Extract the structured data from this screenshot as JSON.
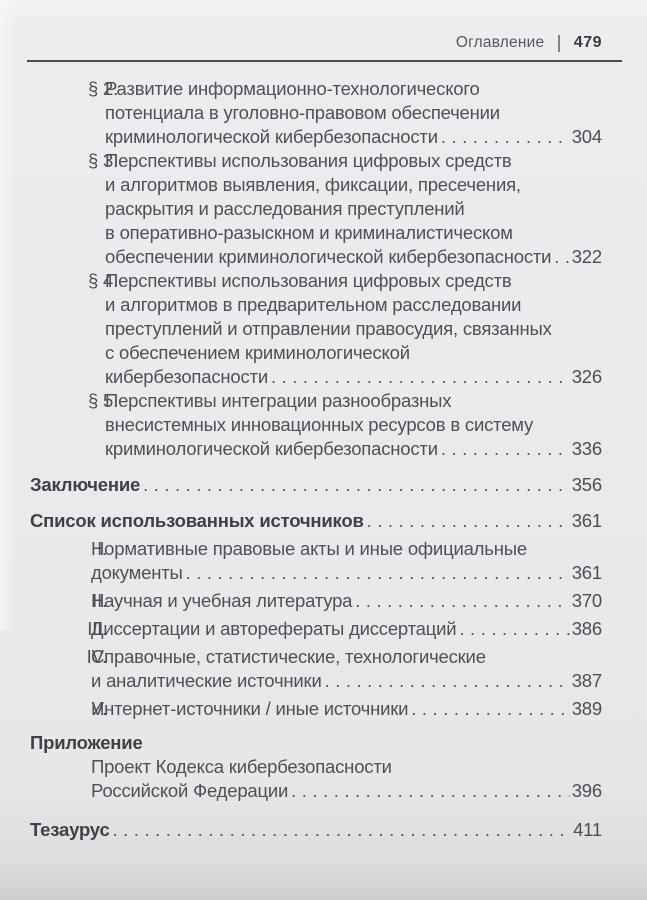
{
  "header": {
    "title": "Оглавление",
    "page_number": "479"
  },
  "toc": {
    "entries": [
      {
        "label": "§ 2.",
        "lines": [
          "Развитие информационно-технологического",
          "потенциала в уголовно-правовом обеспечении"
        ],
        "last_line": "криминологической кибербезопасности",
        "page": "304"
      },
      {
        "label": "§ 3.",
        "lines": [
          "Перспективы использования цифровых средств",
          "и алгоритмов выявления, фиксации, пресечения,",
          "раскрытия и расследования преступлений",
          "в оперативно-разыскном и криминалистическом"
        ],
        "last_line": "обеспечении криминологической кибербезопасности",
        "page": "322"
      },
      {
        "label": "§ 4.",
        "lines": [
          "Перспективы использования цифровых средств",
          "и алгоритмов в предварительном расследовании",
          "преступлений и отправлении правосудия, связанных",
          "с обеспечением криминологической"
        ],
        "last_line": "кибербезопасности",
        "page": "326"
      },
      {
        "label": "§ 5.",
        "lines": [
          "Перспективы интеграции разнообразных",
          "внесистемных инновационных ресурсов в систему"
        ],
        "last_line": "криминологической кибербезопасности",
        "page": "336"
      },
      {
        "title": "Заключение",
        "page": "356"
      },
      {
        "title": "Список использованных источников",
        "page": "361"
      },
      {
        "label": "I.",
        "lines": [
          "Нормативные правовые акты и иные официальные"
        ],
        "last_line": "документы",
        "page": "361"
      },
      {
        "label": "II.",
        "last_line": "Научная и учебная литература",
        "page": "370"
      },
      {
        "label": "III.",
        "last_line": "Диссертации и авторефераты диссертаций",
        "page": "386"
      },
      {
        "label": "IV.",
        "lines": [
          "Справочные, статистические, технологические"
        ],
        "last_line": "и аналитические источники",
        "page": "387"
      },
      {
        "label": "V.",
        "last_line": "Интернет-источники / иные источники",
        "page": "389"
      },
      {
        "title": "Приложение"
      },
      {
        "lines": [
          "Проект Кодекса кибербезопасности"
        ],
        "last_line": "Российской Федерации",
        "page": "396"
      },
      {
        "title": "Тезаурус",
        "page": "411"
      }
    ]
  }
}
